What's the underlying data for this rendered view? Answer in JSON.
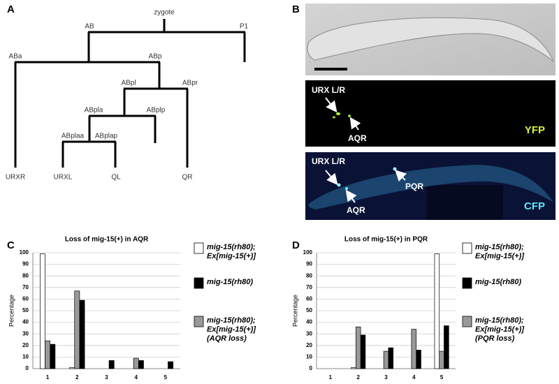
{
  "panel_labels": [
    "A",
    "B",
    "C",
    "D"
  ],
  "lineage_tree": {
    "nodes": [
      "zygote",
      "AB",
      "P1",
      "ABa",
      "ABp",
      "ABpl",
      "ABpr",
      "ABpla",
      "ABplp",
      "ABplaa",
      "ABplap",
      "URXR",
      "URXL",
      "QL",
      "QR"
    ]
  },
  "micrographs": {
    "yfp": {
      "labels": [
        "URX L/R",
        "AQR"
      ],
      "channel": "YFP"
    },
    "cfp": {
      "labels": [
        "URX L/R",
        "PQR",
        "AQR"
      ],
      "channel": "CFP"
    }
  },
  "chart_data": [
    {
      "type": "bar",
      "title": "Loss of mig-15(+) in AQR",
      "y_label": "Percentage",
      "categories": [
        "1",
        "2",
        "3",
        "4",
        "5"
      ],
      "series": [
        {
          "name": "mig-15(rh80); Ex[mig-15(+)]",
          "color": "#ffffff",
          "values": [
            99,
            1,
            0,
            0,
            0
          ]
        },
        {
          "name": "mig-15(rh80)",
          "color": "#000000",
          "values": [
            21,
            59,
            7,
            7,
            6
          ]
        },
        {
          "name": "mig-15(rh80); Ex[mig-15(+)] (AQR loss)",
          "color": "#999999",
          "values": [
            24,
            67,
            0,
            9,
            0
          ]
        }
      ],
      "ylim": [
        0,
        100
      ],
      "yticks": [
        0,
        10,
        20,
        30,
        40,
        50,
        60,
        70,
        80,
        90,
        100
      ],
      "grid": true
    },
    {
      "type": "bar",
      "title": "Loss of mig-15(+) in PQR",
      "y_label": "Percentage",
      "categories": [
        "1",
        "2",
        "3",
        "4",
        "5"
      ],
      "series": [
        {
          "name": "mig-15(rh80); Ex[mig-15(+)]",
          "color": "#ffffff",
          "values": [
            0,
            1,
            0,
            0,
            99
          ]
        },
        {
          "name": "mig-15(rh80)",
          "color": "#000000",
          "values": [
            0,
            29,
            18,
            16,
            37
          ]
        },
        {
          "name": "mig-15(rh80); Ex[mig-15(+)] (PQR loss)",
          "color": "#999999",
          "values": [
            0,
            36,
            15,
            34,
            15
          ]
        }
      ],
      "ylim": [
        0,
        100
      ],
      "yticks": [
        0,
        10,
        20,
        30,
        40,
        50,
        60,
        70,
        80,
        90,
        100
      ],
      "grid": true
    }
  ]
}
